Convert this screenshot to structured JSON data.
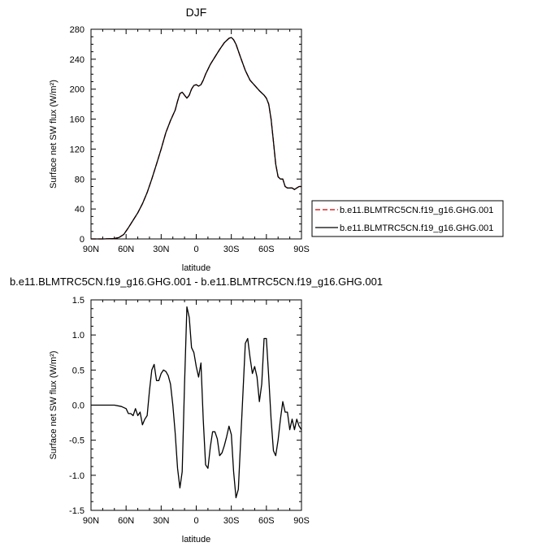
{
  "chart_data": [
    {
      "type": "line",
      "title": "DJF",
      "xlabel": "latitude",
      "ylabel": "Surface net SW flux (W/m²)",
      "xlim": [
        90,
        -90
      ],
      "ylim": [
        0,
        280
      ],
      "xticks": [
        {
          "value": 90,
          "label": "90N"
        },
        {
          "value": 60,
          "label": "60N"
        },
        {
          "value": 30,
          "label": "30N"
        },
        {
          "value": 0,
          "label": "0"
        },
        {
          "value": -30,
          "label": "30S"
        },
        {
          "value": -60,
          "label": "60S"
        },
        {
          "value": -90,
          "label": "90S"
        }
      ],
      "yticks": [
        0,
        40,
        80,
        120,
        160,
        200,
        240,
        280
      ],
      "legend": "right",
      "series": [
        {
          "name": "b.e11.BLMTRC5CN.f19_g16.GHG.001",
          "color": "#cc0000",
          "dash": "dashed",
          "x": [
            90,
            80,
            70,
            66,
            62,
            58,
            54,
            50,
            46,
            42,
            38,
            34,
            30,
            26,
            22,
            18,
            16,
            14,
            12,
            10,
            8,
            6,
            4,
            2,
            0,
            -2,
            -4,
            -6,
            -8,
            -12,
            -16,
            -20,
            -24,
            -28,
            -30,
            -32,
            -34,
            -38,
            -42,
            -46,
            -50,
            -54,
            -58,
            -60,
            -62,
            -64,
            -66,
            -68,
            -70,
            -72,
            -74,
            -76,
            -78,
            -80,
            -82,
            -84,
            -86,
            -88,
            -90
          ],
          "y": [
            0,
            0,
            0.5,
            2,
            6,
            15,
            25,
            35,
            47,
            62,
            80,
            100,
            120,
            142,
            158,
            172,
            184,
            194,
            196,
            192,
            188,
            192,
            200,
            205,
            206,
            204,
            206,
            212,
            220,
            233,
            243,
            253,
            262,
            268,
            269,
            266,
            260,
            242,
            225,
            212,
            205,
            198,
            192,
            188,
            180,
            160,
            130,
            100,
            83,
            80,
            80,
            70,
            68,
            68,
            68,
            66,
            68,
            70,
            70
          ]
        },
        {
          "name": "b.e11.BLMTRC5CN.f19_g16.GHG.001",
          "color": "#000000",
          "dash": "solid",
          "x": [
            90,
            80,
            70,
            66,
            62,
            58,
            54,
            50,
            46,
            42,
            38,
            34,
            30,
            26,
            22,
            18,
            16,
            14,
            12,
            10,
            8,
            6,
            4,
            2,
            0,
            -2,
            -4,
            -6,
            -8,
            -12,
            -16,
            -20,
            -24,
            -28,
            -30,
            -32,
            -34,
            -38,
            -42,
            -46,
            -50,
            -54,
            -58,
            -60,
            -62,
            -64,
            -66,
            -68,
            -70,
            -72,
            -74,
            -76,
            -78,
            -80,
            -82,
            -84,
            -86,
            -88,
            -90
          ],
          "y": [
            0,
            0,
            0.5,
            2,
            6,
            15,
            25,
            35,
            47,
            62,
            80,
            100,
            120,
            142,
            158,
            172,
            184,
            194,
            196,
            192,
            188,
            192,
            200,
            205,
            206,
            204,
            206,
            212,
            220,
            233,
            243,
            253,
            262,
            268,
            269,
            266,
            260,
            242,
            225,
            212,
            205,
            198,
            192,
            188,
            180,
            160,
            130,
            100,
            83,
            80,
            80,
            70,
            68,
            68,
            68,
            66,
            68,
            70,
            70
          ]
        }
      ]
    },
    {
      "type": "line",
      "title": "b.e11.BLMTRC5CN.f19_g16.GHG.001 - b.e11.BLMTRC5CN.f19_g16.GHG.001",
      "xlabel": "latitude",
      "ylabel": "Surface net SW flux (W/m²)",
      "xlim": [
        90,
        -90
      ],
      "ylim": [
        -1.5,
        1.5
      ],
      "xticks": [
        {
          "value": 90,
          "label": "90N"
        },
        {
          "value": 60,
          "label": "60N"
        },
        {
          "value": 30,
          "label": "30N"
        },
        {
          "value": 0,
          "label": "0"
        },
        {
          "value": -30,
          "label": "30S"
        },
        {
          "value": -60,
          "label": "60S"
        },
        {
          "value": -90,
          "label": "90S"
        }
      ],
      "yticks": [
        {
          "value": 1.5,
          "label": "1.5"
        },
        {
          "value": 1.0,
          "label": "1.0"
        },
        {
          "value": 0.5,
          "label": "0.5"
        },
        {
          "value": 0.0,
          "label": "0.0"
        },
        {
          "value": -0.5,
          "label": "-0.5"
        },
        {
          "value": -1.0,
          "label": "-1.0"
        },
        {
          "value": -1.5,
          "label": "-1.5"
        }
      ],
      "series": [
        {
          "color": "#000000",
          "dash": "solid",
          "x": [
            90,
            70,
            64,
            60,
            58,
            56,
            54,
            52,
            50,
            48,
            46,
            44,
            42,
            40,
            38,
            36,
            34,
            32,
            30,
            28,
            26,
            24,
            22,
            20,
            18,
            16,
            14,
            12,
            10,
            8,
            6,
            4,
            2,
            0,
            -2,
            -4,
            -6,
            -8,
            -10,
            -12,
            -14,
            -16,
            -18,
            -20,
            -22,
            -24,
            -26,
            -28,
            -30,
            -32,
            -34,
            -36,
            -38,
            -40,
            -42,
            -44,
            -46,
            -48,
            -50,
            -52,
            -54,
            -56,
            -58,
            -60,
            -62,
            -64,
            -66,
            -68,
            -70,
            -72,
            -74,
            -76,
            -78,
            -80,
            -82,
            -84,
            -86,
            -88,
            -90
          ],
          "y": [
            0,
            0,
            -0.02,
            -0.05,
            -0.12,
            -0.12,
            -0.15,
            -0.05,
            -0.15,
            -0.1,
            -0.28,
            -0.2,
            -0.15,
            0.2,
            0.5,
            0.58,
            0.35,
            0.35,
            0.45,
            0.5,
            0.48,
            0.42,
            0.3,
            0.0,
            -0.4,
            -0.9,
            -1.18,
            -0.95,
            0.3,
            1.4,
            1.25,
            0.82,
            0.75,
            0.55,
            0.4,
            0.6,
            -0.2,
            -0.85,
            -0.9,
            -0.6,
            -0.38,
            -0.38,
            -0.48,
            -0.72,
            -0.68,
            -0.58,
            -0.45,
            -0.3,
            -0.42,
            -0.95,
            -1.32,
            -1.2,
            -0.5,
            0.2,
            0.88,
            0.95,
            0.68,
            0.45,
            0.55,
            0.4,
            0.05,
            0.3,
            0.95,
            0.95,
            0.4,
            -0.2,
            -0.65,
            -0.72,
            -0.5,
            -0.2,
            0.05,
            -0.1,
            -0.1,
            -0.35,
            -0.2,
            -0.35,
            -0.2,
            -0.3,
            -0.35
          ]
        }
      ]
    }
  ]
}
